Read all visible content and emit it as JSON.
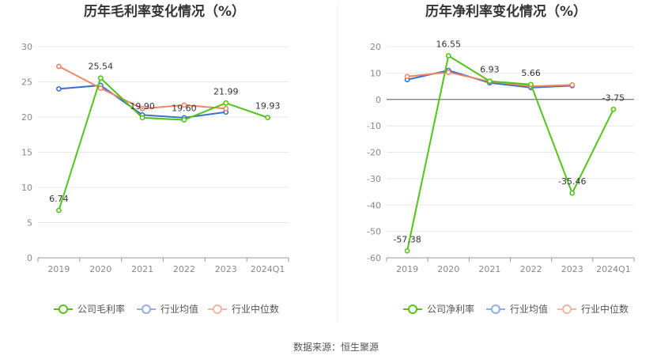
{
  "source_label": "数据来源：恒生聚源",
  "chart_data": [
    {
      "type": "line",
      "title": "历年毛利率变化情况（%）",
      "categories": [
        "2019",
        "2020",
        "2021",
        "2022",
        "2023",
        "2024Q1"
      ],
      "ylim": [
        0,
        30
      ],
      "yticks": [
        0,
        5,
        10,
        15,
        20,
        25,
        30
      ],
      "grid": true,
      "legend_position": "bottom",
      "series": [
        {
          "name": "公司毛利率",
          "color": "#52c41a",
          "values": [
            6.74,
            25.54,
            19.9,
            19.6,
            21.99,
            19.93
          ],
          "labels": [
            "6.74",
            "25.54",
            "19.90",
            "19.60",
            "21.99",
            "19.93"
          ]
        },
        {
          "name": "行业均值",
          "color": "#3a70c9",
          "values": [
            24.0,
            24.5,
            20.3,
            19.9,
            20.7,
            null
          ]
        },
        {
          "name": "行业中位数",
          "color": "#ef8565",
          "values": [
            27.2,
            24.1,
            21.2,
            21.7,
            21.2,
            null
          ]
        }
      ],
      "legend_colors": [
        "#52c41a",
        "#8fb0ea",
        "#f4b6a2"
      ]
    },
    {
      "type": "line",
      "title": "历年净利率变化情况（%）",
      "categories": [
        "2019",
        "2020",
        "2021",
        "2022",
        "2023",
        "2024Q1"
      ],
      "ylim": [
        -60,
        20
      ],
      "yticks": [
        -60,
        -50,
        -40,
        -30,
        -20,
        -10,
        0,
        10,
        20
      ],
      "grid": true,
      "legend_position": "bottom",
      "series": [
        {
          "name": "公司净利率",
          "color": "#52c41a",
          "values": [
            -57.38,
            16.55,
            6.93,
            5.66,
            -35.46,
            -3.75
          ],
          "labels": [
            "-57.38",
            "16.55",
            "6.93",
            "5.66",
            "-35.46",
            "-3.75"
          ]
        },
        {
          "name": "行业均值",
          "color": "#3a70c9",
          "values": [
            7.5,
            11.0,
            6.3,
            4.5,
            5.2,
            null
          ]
        },
        {
          "name": "行业中位数",
          "color": "#ef8565",
          "values": [
            8.7,
            10.3,
            6.8,
            5.0,
            5.5,
            null
          ]
        }
      ],
      "legend_colors": [
        "#52c41a",
        "#8fb0ea",
        "#f4b6a2"
      ]
    }
  ]
}
